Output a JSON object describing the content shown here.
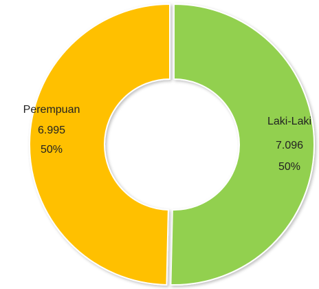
{
  "chart_data": {
    "type": "donut",
    "categories": [
      "Laki-Laki",
      "Perempuan"
    ],
    "values": [
      7096,
      6995
    ],
    "value_labels": [
      "7.096",
      "6.995"
    ],
    "percents": [
      50,
      50
    ],
    "percent_labels": [
      "50%",
      "50%"
    ],
    "colors": [
      "#92d050",
      "#ffc000"
    ]
  }
}
